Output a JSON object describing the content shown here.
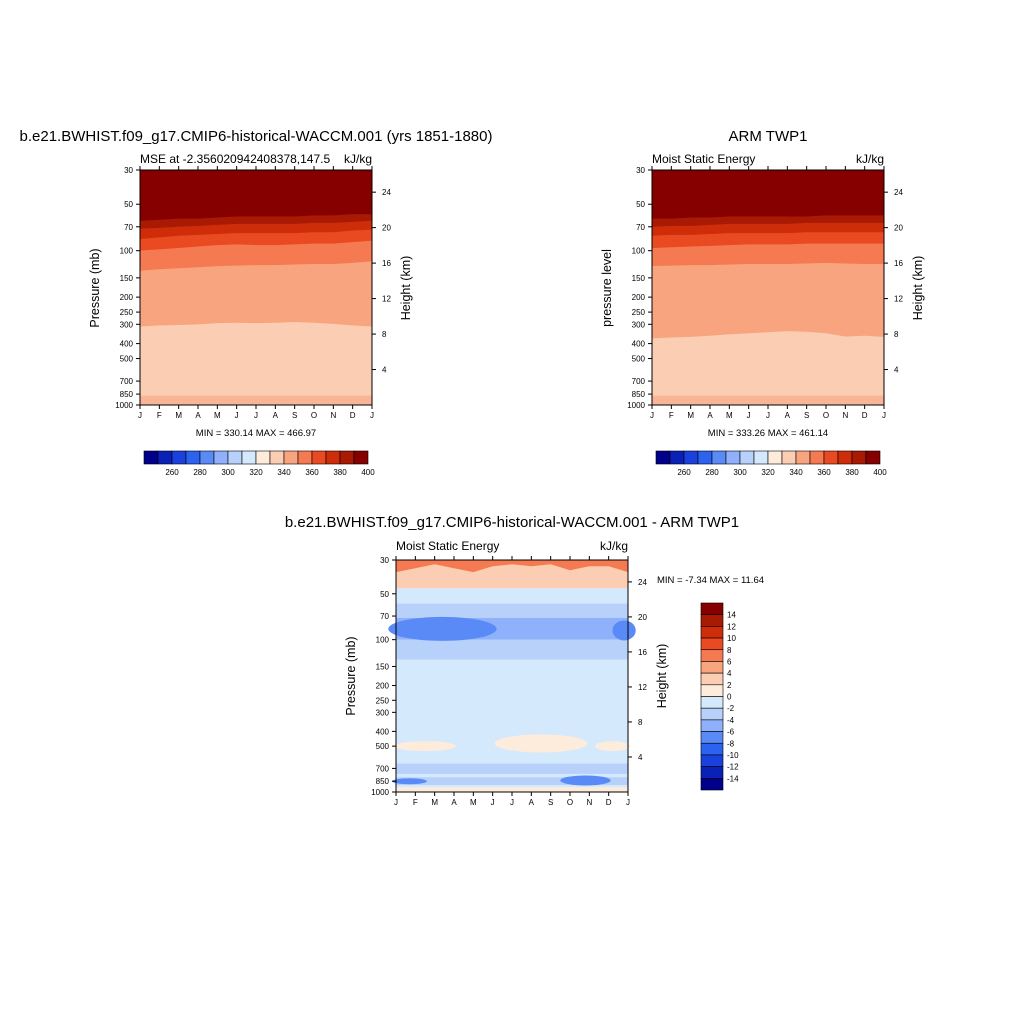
{
  "figure": {
    "title_left": "b.e21.BWHIST.f09_g17.CMIP6-historical-WACCM.001 (yrs 1851-1880)",
    "title_right": "ARM TWP1",
    "title_diff": "b.e21.BWHIST.f09_g17.CMIP6-historical-WACCM.001 - ARM TWP1"
  },
  "colors": {
    "seq_palette": [
      "#00008b",
      "#0a21b8",
      "#1a40dd",
      "#2c62f0",
      "#5a8af5",
      "#8fb0fa",
      "#b7d1fb",
      "#d5e9fc",
      "#fdecdb",
      "#fbcdb2",
      "#f8a47f",
      "#f57a52",
      "#ea4a21",
      "#cf2c0a",
      "#a81a04",
      "#870000"
    ],
    "diff_palette": [
      "#00008b",
      "#0a21b8",
      "#1a40dd",
      "#2c62f0",
      "#5a8af5",
      "#8fb0fa",
      "#b7d1fb",
      "#d5e9fc",
      "#fdecdb",
      "#fbcdb2",
      "#f8a47f",
      "#f57a52",
      "#ea4a21",
      "#cf2c0a",
      "#a81a04",
      "#870000"
    ]
  },
  "chart_data": [
    {
      "type": "heatmap",
      "name": "model",
      "subtitle_left": "MSE at -2.356020942408378,147.5",
      "units": "kJ/kg",
      "ylabel": "Pressure (mb)",
      "ylabel_right": "Height (km)",
      "x_ticks": [
        "J",
        "F",
        "M",
        "A",
        "M",
        "J",
        "J",
        "A",
        "S",
        "O",
        "N",
        "D",
        "J"
      ],
      "y_ticks": [
        30,
        50,
        70,
        100,
        150,
        200,
        250,
        300,
        400,
        500,
        700,
        850,
        1000
      ],
      "yr_ticks": [
        4,
        8,
        12,
        16,
        20,
        24
      ],
      "stats": "MIN = 330.14 MAX = 466.97",
      "levels": [
        250,
        260,
        270,
        280,
        290,
        300,
        310,
        320,
        330,
        340,
        350,
        360,
        370,
        380,
        390,
        400
      ],
      "colorbar_labels": [
        260,
        280,
        300,
        320,
        340,
        360,
        380,
        400
      ],
      "contour_bands": [
        {
          "level": 340,
          "p": [
            310,
            305,
            303,
            300,
            295,
            293,
            295,
            293,
            290,
            293,
            298,
            305,
            310
          ]
        },
        {
          "level": 350,
          "p": [
            135,
            132,
            130,
            128,
            126,
            125,
            124,
            124,
            123,
            122,
            122,
            120,
            117
          ]
        },
        {
          "level": 360,
          "p": [
            100,
            98,
            96,
            94,
            92,
            91,
            92,
            92,
            91,
            90,
            90,
            88,
            86
          ]
        },
        {
          "level": 370,
          "p": [
            84,
            82,
            80,
            79,
            78,
            77,
            77,
            77,
            77,
            76,
            76,
            74,
            73
          ]
        },
        {
          "level": 380,
          "p": [
            72,
            71,
            70,
            69,
            68,
            67,
            67,
            67,
            67,
            66,
            66,
            65,
            64
          ]
        },
        {
          "level": 390,
          "p": [
            64,
            63,
            62,
            62,
            61,
            60,
            60,
            60,
            60,
            59,
            59,
            58,
            58
          ]
        },
        {
          "level": 400,
          "p": [
            57,
            57,
            56,
            56,
            55,
            55,
            55,
            55,
            54,
            54,
            54,
            53,
            53
          ]
        }
      ]
    },
    {
      "type": "heatmap",
      "name": "obs",
      "subtitle_left": "Moist Static Energy",
      "units": "kJ/kg",
      "ylabel": "pressure level",
      "ylabel_right": "Height (km)",
      "x_ticks": [
        "J",
        "F",
        "M",
        "A",
        "M",
        "J",
        "J",
        "A",
        "S",
        "O",
        "N",
        "D",
        "J"
      ],
      "y_ticks": [
        30,
        50,
        70,
        100,
        150,
        200,
        250,
        300,
        400,
        500,
        700,
        850,
        1000
      ],
      "yr_ticks": [
        4,
        8,
        12,
        16,
        20,
        24
      ],
      "stats": "MIN = 333.26 MAX = 461.14",
      "levels": [
        250,
        260,
        270,
        280,
        290,
        300,
        310,
        320,
        330,
        340,
        350,
        360,
        370,
        380,
        390,
        400
      ],
      "colorbar_labels": [
        260,
        280,
        300,
        320,
        340,
        360,
        380,
        400
      ],
      "contour_bands": [
        {
          "level": 340,
          "p": [
            370,
            365,
            362,
            356,
            348,
            343,
            338,
            332,
            335,
            343,
            360,
            356,
            362
          ]
        },
        {
          "level": 350,
          "p": [
            126,
            125,
            124,
            124,
            123,
            122,
            122,
            122,
            121,
            120,
            121,
            122,
            122
          ]
        },
        {
          "level": 360,
          "p": [
            96,
            95,
            94,
            93,
            92,
            91,
            91,
            91,
            90,
            90,
            90,
            90,
            90
          ]
        },
        {
          "level": 370,
          "p": [
            80,
            79,
            79,
            78,
            77,
            77,
            77,
            77,
            76,
            76,
            76,
            76,
            76
          ]
        },
        {
          "level": 380,
          "p": [
            70,
            69,
            69,
            68,
            67,
            67,
            67,
            67,
            66,
            66,
            66,
            66,
            66
          ]
        },
        {
          "level": 390,
          "p": [
            62,
            62,
            61,
            61,
            60,
            60,
            60,
            60,
            60,
            59,
            59,
            59,
            59
          ]
        },
        {
          "level": 400,
          "p": [
            56,
            56,
            55,
            55,
            55,
            54,
            54,
            54,
            54,
            54,
            54,
            53,
            53
          ]
        }
      ]
    },
    {
      "type": "heatmap",
      "name": "difference",
      "subtitle_left": "Moist Static Energy",
      "units": "kJ/kg",
      "ylabel": "Pressure (mb)",
      "ylabel_right": "Height (km)",
      "x_ticks": [
        "J",
        "F",
        "M",
        "A",
        "M",
        "J",
        "J",
        "A",
        "S",
        "O",
        "N",
        "D",
        "J"
      ],
      "y_ticks": [
        30,
        50,
        70,
        100,
        150,
        200,
        250,
        300,
        400,
        500,
        700,
        850,
        1000
      ],
      "yr_ticks": [
        4,
        8,
        12,
        16,
        20,
        24
      ],
      "stats": "MIN =  -7.34 MAX =  11.64",
      "levels": [
        -14,
        -12,
        -10,
        -8,
        -6,
        -4,
        -2,
        0,
        2,
        4,
        6,
        8,
        10,
        12,
        14
      ],
      "colorbar_labels": [
        -14,
        -12,
        -10,
        -8,
        -6,
        -4,
        -2,
        0,
        2,
        4,
        6,
        8,
        10,
        12,
        14
      ],
      "approx_profile": [
        {
          "p": 30,
          "value": 5
        },
        {
          "p": 45,
          "value": 1
        },
        {
          "p": 60,
          "value": -3
        },
        {
          "p": 85,
          "value": -5
        },
        {
          "p": 110,
          "value": -3
        },
        {
          "p": 200,
          "value": -1
        },
        {
          "p": 480,
          "value": 1
        },
        {
          "p": 700,
          "value": -2
        },
        {
          "p": 850,
          "value": -4
        },
        {
          "p": 1000,
          "value": 1
        }
      ]
    }
  ]
}
